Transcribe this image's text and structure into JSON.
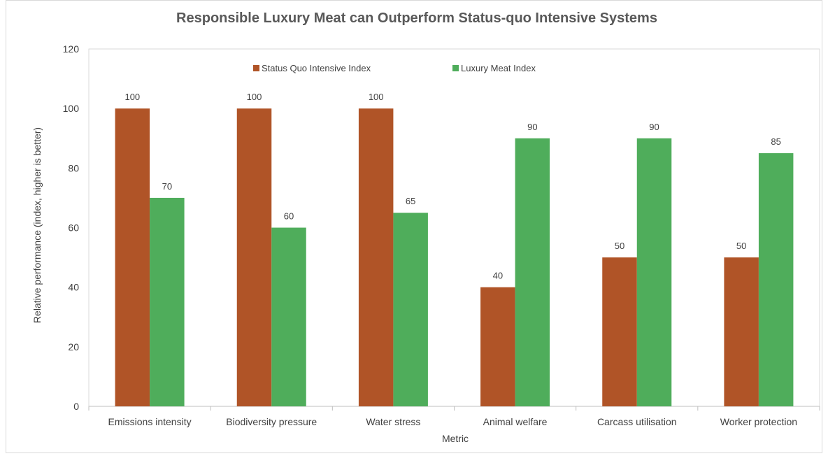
{
  "chart_data": {
    "type": "bar",
    "title": "Responsible Luxury Meat can Outperform Status-quo Intensive Systems",
    "xlabel": "Metric",
    "ylabel": "Relative performance (index, higher is better)",
    "ylim": [
      0,
      120
    ],
    "yticks": [
      0,
      20,
      40,
      60,
      80,
      100,
      120
    ],
    "categories": [
      "Emissions intensity",
      "Biodiversity pressure",
      "Water stress",
      "Animal welfare",
      "Carcass utilisation",
      "Worker protection"
    ],
    "series": [
      {
        "name": "Status Quo Intensive Index",
        "color": "#b05427",
        "values": [
          100,
          100,
          100,
          40,
          50,
          50
        ]
      },
      {
        "name": "Luxury Meat Index",
        "color": "#4fad5b",
        "values": [
          70,
          60,
          65,
          90,
          90,
          85
        ]
      }
    ],
    "legend_position": "top"
  }
}
